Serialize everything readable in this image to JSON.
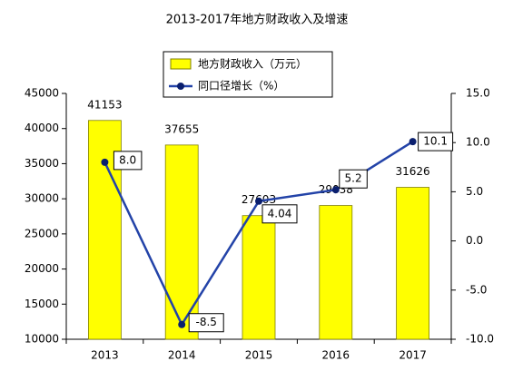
{
  "chart_data": {
    "type": "bar",
    "title": "2013-2017年地方财政收入及增速",
    "categories": [
      "2013",
      "2014",
      "2015",
      "2016",
      "2017"
    ],
    "series": [
      {
        "name": "地方财政收入（万元）",
        "color": "#ffff00",
        "values": [
          41153,
          37655,
          27603,
          29038,
          31626
        ]
      },
      {
        "name": "同口径增长（%）",
        "type": "line",
        "axis": "y2",
        "color": "#2343a8",
        "values": [
          8.0,
          -8.5,
          4.04,
          5.2,
          10.1
        ],
        "value_labels": [
          "8.0",
          "-8.5",
          "4.04",
          "5.2",
          "10.1"
        ]
      }
    ],
    "ylim": [
      10000,
      45000
    ],
    "yticks": [
      10000,
      15000,
      20000,
      25000,
      30000,
      35000,
      40000,
      45000
    ],
    "y2lim": [
      -10,
      15
    ],
    "y2ticks": [
      {
        "value": -10,
        "label": "-10.0"
      },
      {
        "value": -5,
        "label": "-5.0"
      },
      {
        "value": 0,
        "label": "0.0"
      },
      {
        "value": 5,
        "label": "5.0"
      },
      {
        "value": 10,
        "label": "10.0"
      },
      {
        "value": 15,
        "label": "15.0"
      }
    ],
    "grid": false
  }
}
